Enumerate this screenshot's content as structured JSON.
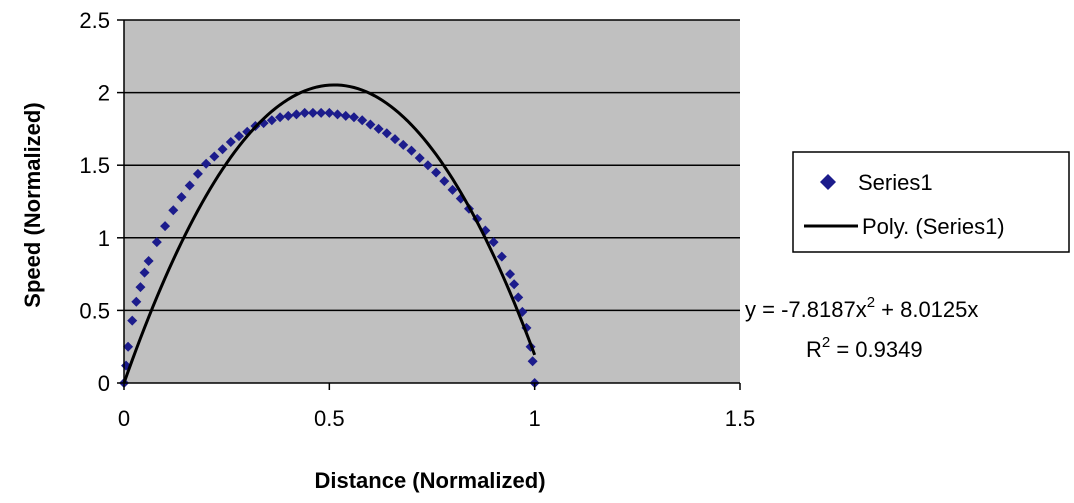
{
  "chart_data": {
    "type": "scatter",
    "title": "",
    "xlabel": "Distance (Normalized)",
    "ylabel": "Speed (Normalized)",
    "xlim": [
      0,
      1.5
    ],
    "ylim": [
      0,
      2.5
    ],
    "xticks": [
      "0",
      "0.5",
      "1",
      "1.5"
    ],
    "yticks": [
      "0",
      "0.5",
      "1",
      "1.5",
      "2",
      "2.5"
    ],
    "grid": "horizontal",
    "plot_background": "#c0c0c0",
    "legend_position": "right",
    "series": [
      {
        "name": "Series1",
        "kind": "scatter",
        "marker": "diamond",
        "color": "#1c1c8c",
        "x": [
          0.0,
          0.005,
          0.01,
          0.02,
          0.03,
          0.04,
          0.05,
          0.06,
          0.08,
          0.1,
          0.12,
          0.14,
          0.16,
          0.18,
          0.2,
          0.22,
          0.24,
          0.26,
          0.28,
          0.3,
          0.32,
          0.34,
          0.36,
          0.38,
          0.4,
          0.42,
          0.44,
          0.46,
          0.48,
          0.5,
          0.52,
          0.54,
          0.56,
          0.58,
          0.6,
          0.62,
          0.64,
          0.66,
          0.68,
          0.7,
          0.72,
          0.74,
          0.76,
          0.78,
          0.8,
          0.82,
          0.84,
          0.86,
          0.88,
          0.9,
          0.92,
          0.94,
          0.95,
          0.96,
          0.97,
          0.98,
          0.99,
          0.995,
          1.0
        ],
        "y": [
          0.0,
          0.12,
          0.25,
          0.43,
          0.56,
          0.66,
          0.76,
          0.84,
          0.97,
          1.08,
          1.19,
          1.28,
          1.36,
          1.44,
          1.51,
          1.56,
          1.61,
          1.66,
          1.7,
          1.73,
          1.77,
          1.79,
          1.81,
          1.83,
          1.84,
          1.85,
          1.86,
          1.86,
          1.86,
          1.86,
          1.85,
          1.84,
          1.83,
          1.81,
          1.78,
          1.75,
          1.72,
          1.68,
          1.64,
          1.6,
          1.55,
          1.5,
          1.45,
          1.39,
          1.33,
          1.27,
          1.2,
          1.13,
          1.05,
          0.97,
          0.87,
          0.75,
          0.68,
          0.59,
          0.49,
          0.38,
          0.25,
          0.15,
          0.0
        ]
      },
      {
        "name": "Poly. (Series1)",
        "kind": "trendline",
        "color": "#000000",
        "coefficients": {
          "a": -7.8187,
          "b": 8.0125
        },
        "x_range": [
          0,
          1.0
        ]
      }
    ],
    "annotations": {
      "equation_prefix": "y = -7.8187x",
      "equation_suffix": " + 8.0125x",
      "r2_prefix": "R",
      "r2_suffix": " = 0.9349",
      "superscript": "2"
    }
  }
}
